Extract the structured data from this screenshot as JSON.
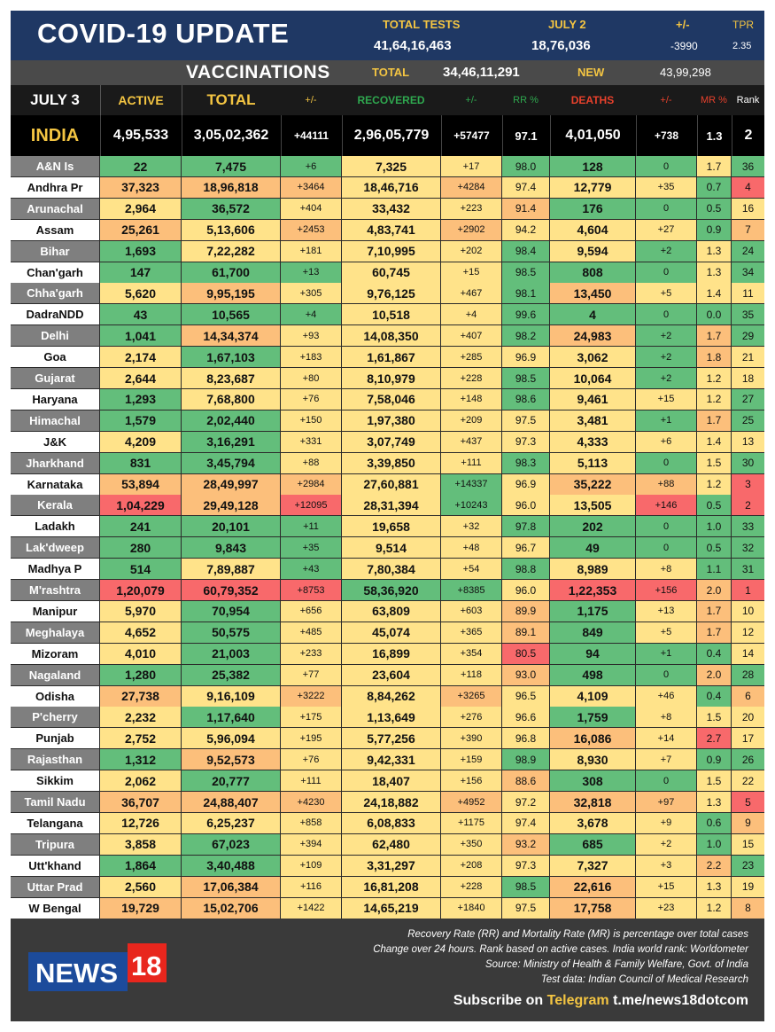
{
  "header": {
    "title": "COVID-19 UPDATE",
    "total_tests_label": "TOTAL TESTS",
    "total_tests_value": "41,64,16,463",
    "july2_label": "JULY 2",
    "july2_value": "18,76,036",
    "change_label": "+/-",
    "change_value": "-3990",
    "tpr_label": "TPR",
    "tpr_value": "2.35"
  },
  "vaccinations": {
    "label": "VACCINATIONS",
    "total_label": "TOTAL",
    "total_value": "34,46,11,291",
    "new_label": "NEW",
    "new_value": "43,99,298"
  },
  "columns": {
    "date": "JULY 3",
    "active": "ACTIVE",
    "total": "TOTAL",
    "change1": "+/-",
    "recovered": "RECOVERED",
    "change2": "+/-",
    "rr": "RR %",
    "deaths": "DEATHS",
    "change3": "+/-",
    "mr": "MR %",
    "rank": "Rank"
  },
  "india": {
    "name": "INDIA",
    "active": "4,95,533",
    "total": "3,05,02,362",
    "tchg": "+44111",
    "recovered": "2,96,05,779",
    "rchg": "+57477",
    "rr": "97.1",
    "deaths": "4,01,050",
    "dchg": "+738",
    "mr": "1.3",
    "rank": "2"
  },
  "colors": {
    "header_bg": "#1f3864",
    "accent_yellow": "#f4c542",
    "recovered_green": "#2fa84f",
    "deaths_red": "#e8412c",
    "green": "#63be7b",
    "yellow": "#ffeb84",
    "red": "#f8696b"
  },
  "states": [
    {
      "name": "A&N Is",
      "active": "22",
      "total": "7,475",
      "tchg": "+6",
      "recovered": "7,325",
      "rchg": "+17",
      "rr": "98.0",
      "deaths": "128",
      "dchg": "0",
      "mr": "1.7",
      "rank": "36",
      "c": [
        "g",
        "g",
        "g",
        "y",
        "y",
        "g",
        "g",
        "g",
        "y",
        "g"
      ]
    },
    {
      "name": "Andhra Pr",
      "active": "37,323",
      "total": "18,96,818",
      "tchg": "+3464",
      "recovered": "18,46,716",
      "rchg": "+4284",
      "rr": "97.4",
      "deaths": "12,779",
      "dchg": "+35",
      "mr": "0.7",
      "rank": "4",
      "c": [
        "o",
        "o",
        "o",
        "y",
        "o",
        "y",
        "y",
        "y",
        "g",
        "r"
      ]
    },
    {
      "name": "Arunachal",
      "active": "2,964",
      "total": "36,572",
      "tchg": "+404",
      "recovered": "33,432",
      "rchg": "+223",
      "rr": "91.4",
      "deaths": "176",
      "dchg": "0",
      "mr": "0.5",
      "rank": "16",
      "c": [
        "y",
        "g",
        "y",
        "y",
        "y",
        "o",
        "g",
        "g",
        "g",
        "y"
      ]
    },
    {
      "name": "Assam",
      "active": "25,261",
      "total": "5,13,606",
      "tchg": "+2453",
      "recovered": "4,83,741",
      "rchg": "+2902",
      "rr": "94.2",
      "deaths": "4,604",
      "dchg": "+27",
      "mr": "0.9",
      "rank": "7",
      "c": [
        "o",
        "y",
        "o",
        "y",
        "o",
        "y",
        "y",
        "y",
        "g",
        "o"
      ]
    },
    {
      "name": "Bihar",
      "active": "1,693",
      "total": "7,22,282",
      "tchg": "+181",
      "recovered": "7,10,995",
      "rchg": "+202",
      "rr": "98.4",
      "deaths": "9,594",
      "dchg": "+2",
      "mr": "1.3",
      "rank": "24",
      "c": [
        "g",
        "y",
        "y",
        "y",
        "y",
        "g",
        "y",
        "g",
        "y",
        "g"
      ]
    },
    {
      "name": "Chan'garh",
      "active": "147",
      "total": "61,700",
      "tchg": "+13",
      "recovered": "60,745",
      "rchg": "+15",
      "rr": "98.5",
      "deaths": "808",
      "dchg": "0",
      "mr": "1.3",
      "rank": "34",
      "c": [
        "g",
        "g",
        "g",
        "y",
        "y",
        "g",
        "g",
        "g",
        "y",
        "g"
      ]
    },
    {
      "name": "Chha'garh",
      "active": "5,620",
      "total": "9,95,195",
      "tchg": "+305",
      "recovered": "9,76,125",
      "rchg": "+467",
      "rr": "98.1",
      "deaths": "13,450",
      "dchg": "+5",
      "mr": "1.4",
      "rank": "11",
      "c": [
        "y",
        "o",
        "y",
        "y",
        "y",
        "g",
        "o",
        "y",
        "y",
        "y"
      ]
    },
    {
      "name": "DadraNDD",
      "active": "43",
      "total": "10,565",
      "tchg": "+4",
      "recovered": "10,518",
      "rchg": "+4",
      "rr": "99.6",
      "deaths": "4",
      "dchg": "0",
      "mr": "0.0",
      "rank": "35",
      "c": [
        "g",
        "g",
        "g",
        "y",
        "y",
        "g",
        "g",
        "g",
        "g",
        "g"
      ]
    },
    {
      "name": "Delhi",
      "active": "1,041",
      "total": "14,34,374",
      "tchg": "+93",
      "recovered": "14,08,350",
      "rchg": "+407",
      "rr": "98.2",
      "deaths": "24,983",
      "dchg": "+2",
      "mr": "1.7",
      "rank": "29",
      "c": [
        "g",
        "o",
        "y",
        "y",
        "y",
        "g",
        "o",
        "g",
        "o",
        "g"
      ]
    },
    {
      "name": "Goa",
      "active": "2,174",
      "total": "1,67,103",
      "tchg": "+183",
      "recovered": "1,61,867",
      "rchg": "+285",
      "rr": "96.9",
      "deaths": "3,062",
      "dchg": "+2",
      "mr": "1.8",
      "rank": "21",
      "c": [
        "y",
        "g",
        "y",
        "y",
        "y",
        "y",
        "y",
        "g",
        "o",
        "y"
      ]
    },
    {
      "name": "Gujarat",
      "active": "2,644",
      "total": "8,23,687",
      "tchg": "+80",
      "recovered": "8,10,979",
      "rchg": "+228",
      "rr": "98.5",
      "deaths": "10,064",
      "dchg": "+2",
      "mr": "1.2",
      "rank": "18",
      "c": [
        "y",
        "y",
        "y",
        "y",
        "y",
        "g",
        "y",
        "g",
        "y",
        "y"
      ]
    },
    {
      "name": "Haryana",
      "active": "1,293",
      "total": "7,68,800",
      "tchg": "+76",
      "recovered": "7,58,046",
      "rchg": "+148",
      "rr": "98.6",
      "deaths": "9,461",
      "dchg": "+15",
      "mr": "1.2",
      "rank": "27",
      "c": [
        "g",
        "y",
        "y",
        "y",
        "y",
        "g",
        "y",
        "y",
        "y",
        "g"
      ]
    },
    {
      "name": "Himachal",
      "active": "1,579",
      "total": "2,02,440",
      "tchg": "+150",
      "recovered": "1,97,380",
      "rchg": "+209",
      "rr": "97.5",
      "deaths": "3,481",
      "dchg": "+1",
      "mr": "1.7",
      "rank": "25",
      "c": [
        "g",
        "g",
        "y",
        "y",
        "y",
        "y",
        "y",
        "g",
        "o",
        "g"
      ]
    },
    {
      "name": "J&K",
      "active": "4,209",
      "total": "3,16,291",
      "tchg": "+331",
      "recovered": "3,07,749",
      "rchg": "+437",
      "rr": "97.3",
      "deaths": "4,333",
      "dchg": "+6",
      "mr": "1.4",
      "rank": "13",
      "c": [
        "y",
        "g",
        "y",
        "y",
        "y",
        "y",
        "y",
        "y",
        "y",
        "y"
      ]
    },
    {
      "name": "Jharkhand",
      "active": "831",
      "total": "3,45,794",
      "tchg": "+88",
      "recovered": "3,39,850",
      "rchg": "+111",
      "rr": "98.3",
      "deaths": "5,113",
      "dchg": "0",
      "mr": "1.5",
      "rank": "30",
      "c": [
        "g",
        "g",
        "y",
        "y",
        "y",
        "g",
        "y",
        "g",
        "y",
        "g"
      ]
    },
    {
      "name": "Karnataka",
      "active": "53,894",
      "total": "28,49,997",
      "tchg": "+2984",
      "recovered": "27,60,881",
      "rchg": "+14337",
      "rr": "96.9",
      "deaths": "35,222",
      "dchg": "+88",
      "mr": "1.2",
      "rank": "3",
      "c": [
        "o",
        "o",
        "o",
        "y",
        "g",
        "y",
        "o",
        "o",
        "y",
        "r"
      ]
    },
    {
      "name": "Kerala",
      "active": "1,04,229",
      "total": "29,49,128",
      "tchg": "+12095",
      "recovered": "28,31,394",
      "rchg": "+10243",
      "rr": "96.0",
      "deaths": "13,505",
      "dchg": "+146",
      "mr": "0.5",
      "rank": "2",
      "c": [
        "r",
        "o",
        "r",
        "y",
        "g",
        "y",
        "y",
        "r",
        "g",
        "r"
      ]
    },
    {
      "name": "Ladakh",
      "active": "241",
      "total": "20,101",
      "tchg": "+11",
      "recovered": "19,658",
      "rchg": "+32",
      "rr": "97.8",
      "deaths": "202",
      "dchg": "0",
      "mr": "1.0",
      "rank": "33",
      "c": [
        "g",
        "g",
        "g",
        "y",
        "y",
        "g",
        "g",
        "g",
        "g",
        "g"
      ]
    },
    {
      "name": "Lak'dweep",
      "active": "280",
      "total": "9,843",
      "tchg": "+35",
      "recovered": "9,514",
      "rchg": "+48",
      "rr": "96.7",
      "deaths": "49",
      "dchg": "0",
      "mr": "0.5",
      "rank": "32",
      "c": [
        "g",
        "g",
        "g",
        "y",
        "y",
        "y",
        "g",
        "g",
        "g",
        "g"
      ]
    },
    {
      "name": "Madhya P",
      "active": "514",
      "total": "7,89,887",
      "tchg": "+43",
      "recovered": "7,80,384",
      "rchg": "+54",
      "rr": "98.8",
      "deaths": "8,989",
      "dchg": "+8",
      "mr": "1.1",
      "rank": "31",
      "c": [
        "g",
        "y",
        "g",
        "y",
        "y",
        "g",
        "y",
        "y",
        "g",
        "g"
      ]
    },
    {
      "name": "M'rashtra",
      "active": "1,20,079",
      "total": "60,79,352",
      "tchg": "+8753",
      "recovered": "58,36,920",
      "rchg": "+8385",
      "rr": "96.0",
      "deaths": "1,22,353",
      "dchg": "+156",
      "mr": "2.0",
      "rank": "1",
      "c": [
        "r",
        "r",
        "r",
        "g",
        "g",
        "y",
        "r",
        "r",
        "o",
        "r"
      ]
    },
    {
      "name": "Manipur",
      "active": "5,970",
      "total": "70,954",
      "tchg": "+656",
      "recovered": "63,809",
      "rchg": "+603",
      "rr": "89.9",
      "deaths": "1,175",
      "dchg": "+13",
      "mr": "1.7",
      "rank": "10",
      "c": [
        "y",
        "g",
        "y",
        "y",
        "y",
        "o",
        "g",
        "y",
        "o",
        "y"
      ]
    },
    {
      "name": "Meghalaya",
      "active": "4,652",
      "total": "50,575",
      "tchg": "+485",
      "recovered": "45,074",
      "rchg": "+365",
      "rr": "89.1",
      "deaths": "849",
      "dchg": "+5",
      "mr": "1.7",
      "rank": "12",
      "c": [
        "y",
        "g",
        "y",
        "y",
        "y",
        "o",
        "g",
        "y",
        "o",
        "y"
      ]
    },
    {
      "name": "Mizoram",
      "active": "4,010",
      "total": "21,003",
      "tchg": "+233",
      "recovered": "16,899",
      "rchg": "+354",
      "rr": "80.5",
      "deaths": "94",
      "dchg": "+1",
      "mr": "0.4",
      "rank": "14",
      "c": [
        "y",
        "g",
        "y",
        "y",
        "y",
        "r",
        "g",
        "g",
        "g",
        "y"
      ]
    },
    {
      "name": "Nagaland",
      "active": "1,280",
      "total": "25,382",
      "tchg": "+77",
      "recovered": "23,604",
      "rchg": "+118",
      "rr": "93.0",
      "deaths": "498",
      "dchg": "0",
      "mr": "2.0",
      "rank": "28",
      "c": [
        "g",
        "g",
        "y",
        "y",
        "y",
        "o",
        "g",
        "g",
        "o",
        "g"
      ]
    },
    {
      "name": "Odisha",
      "active": "27,738",
      "total": "9,16,109",
      "tchg": "+3222",
      "recovered": "8,84,262",
      "rchg": "+3265",
      "rr": "96.5",
      "deaths": "4,109",
      "dchg": "+46",
      "mr": "0.4",
      "rank": "6",
      "c": [
        "o",
        "y",
        "o",
        "y",
        "o",
        "y",
        "y",
        "y",
        "g",
        "o"
      ]
    },
    {
      "name": "P'cherry",
      "active": "2,232",
      "total": "1,17,640",
      "tchg": "+175",
      "recovered": "1,13,649",
      "rchg": "+276",
      "rr": "96.6",
      "deaths": "1,759",
      "dchg": "+8",
      "mr": "1.5",
      "rank": "20",
      "c": [
        "y",
        "g",
        "y",
        "y",
        "y",
        "y",
        "g",
        "y",
        "y",
        "y"
      ]
    },
    {
      "name": "Punjab",
      "active": "2,752",
      "total": "5,96,094",
      "tchg": "+195",
      "recovered": "5,77,256",
      "rchg": "+390",
      "rr": "96.8",
      "deaths": "16,086",
      "dchg": "+14",
      "mr": "2.7",
      "rank": "17",
      "c": [
        "y",
        "y",
        "y",
        "y",
        "y",
        "y",
        "o",
        "y",
        "r",
        "y"
      ]
    },
    {
      "name": "Rajasthan",
      "active": "1,312",
      "total": "9,52,573",
      "tchg": "+76",
      "recovered": "9,42,331",
      "rchg": "+159",
      "rr": "98.9",
      "deaths": "8,930",
      "dchg": "+7",
      "mr": "0.9",
      "rank": "26",
      "c": [
        "g",
        "o",
        "y",
        "y",
        "y",
        "g",
        "y",
        "y",
        "g",
        "g"
      ]
    },
    {
      "name": "Sikkim",
      "active": "2,062",
      "total": "20,777",
      "tchg": "+111",
      "recovered": "18,407",
      "rchg": "+156",
      "rr": "88.6",
      "deaths": "308",
      "dchg": "0",
      "mr": "1.5",
      "rank": "22",
      "c": [
        "y",
        "g",
        "y",
        "y",
        "y",
        "o",
        "g",
        "g",
        "y",
        "y"
      ]
    },
    {
      "name": "Tamil Nadu",
      "active": "36,707",
      "total": "24,88,407",
      "tchg": "+4230",
      "recovered": "24,18,882",
      "rchg": "+4952",
      "rr": "97.2",
      "deaths": "32,818",
      "dchg": "+97",
      "mr": "1.3",
      "rank": "5",
      "c": [
        "o",
        "o",
        "o",
        "y",
        "o",
        "y",
        "o",
        "o",
        "y",
        "r"
      ]
    },
    {
      "name": "Telangana",
      "active": "12,726",
      "total": "6,25,237",
      "tchg": "+858",
      "recovered": "6,08,833",
      "rchg": "+1175",
      "rr": "97.4",
      "deaths": "3,678",
      "dchg": "+9",
      "mr": "0.6",
      "rank": "9",
      "c": [
        "y",
        "y",
        "y",
        "y",
        "y",
        "y",
        "y",
        "y",
        "g",
        "o"
      ]
    },
    {
      "name": "Tripura",
      "active": "3,858",
      "total": "67,023",
      "tchg": "+394",
      "recovered": "62,480",
      "rchg": "+350",
      "rr": "93.2",
      "deaths": "685",
      "dchg": "+2",
      "mr": "1.0",
      "rank": "15",
      "c": [
        "y",
        "g",
        "y",
        "y",
        "y",
        "o",
        "g",
        "y",
        "g",
        "y"
      ]
    },
    {
      "name": "Utt'khand",
      "active": "1,864",
      "total": "3,40,488",
      "tchg": "+109",
      "recovered": "3,31,297",
      "rchg": "+208",
      "rr": "97.3",
      "deaths": "7,327",
      "dchg": "+3",
      "mr": "2.2",
      "rank": "23",
      "c": [
        "g",
        "g",
        "y",
        "y",
        "y",
        "y",
        "y",
        "y",
        "o",
        "g"
      ]
    },
    {
      "name": "Uttar Prad",
      "active": "2,560",
      "total": "17,06,384",
      "tchg": "+116",
      "recovered": "16,81,208",
      "rchg": "+228",
      "rr": "98.5",
      "deaths": "22,616",
      "dchg": "+15",
      "mr": "1.3",
      "rank": "19",
      "c": [
        "y",
        "o",
        "y",
        "y",
        "y",
        "g",
        "o",
        "y",
        "y",
        "y"
      ]
    },
    {
      "name": "W Bengal",
      "active": "19,729",
      "total": "15,02,706",
      "tchg": "+1422",
      "recovered": "14,65,219",
      "rchg": "+1840",
      "rr": "97.5",
      "deaths": "17,758",
      "dchg": "+23",
      "mr": "1.2",
      "rank": "8",
      "c": [
        "o",
        "o",
        "y",
        "y",
        "y",
        "y",
        "o",
        "y",
        "y",
        "o"
      ]
    }
  ],
  "footer": {
    "note1": "Recovery Rate (RR) and Mortality Rate (MR) is percentage over total cases",
    "note2": "Change over 24 hours. Rank based on active cases. India world rank: Worldometer",
    "note3": "Source: Ministry of Health & Family Welfare, Govt. of India",
    "note4": "Test data: Indian Council of Medical Research",
    "subscribe_prefix": "Subscribe on",
    "telegram": "Telegram",
    "link": "t.me/news18dotcom",
    "logo_text": "NEWS",
    "logo_num": "18"
  }
}
